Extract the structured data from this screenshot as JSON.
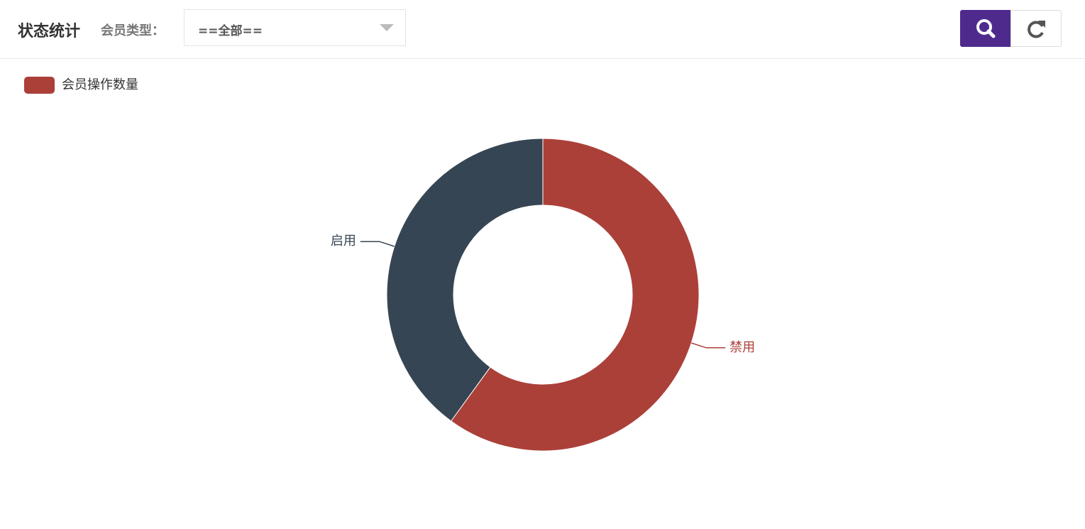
{
  "header": {
    "title": "状态统计",
    "filter_label": "会员类型：",
    "filter_value": "==全部=="
  },
  "chart_data": {
    "type": "pie",
    "categories": [
      "禁用",
      "启用"
    ],
    "series": [
      {
        "name": "会员操作数量",
        "values": [
          60,
          40
        ]
      }
    ],
    "colors": [
      "#ab4039",
      "#364554"
    ]
  }
}
